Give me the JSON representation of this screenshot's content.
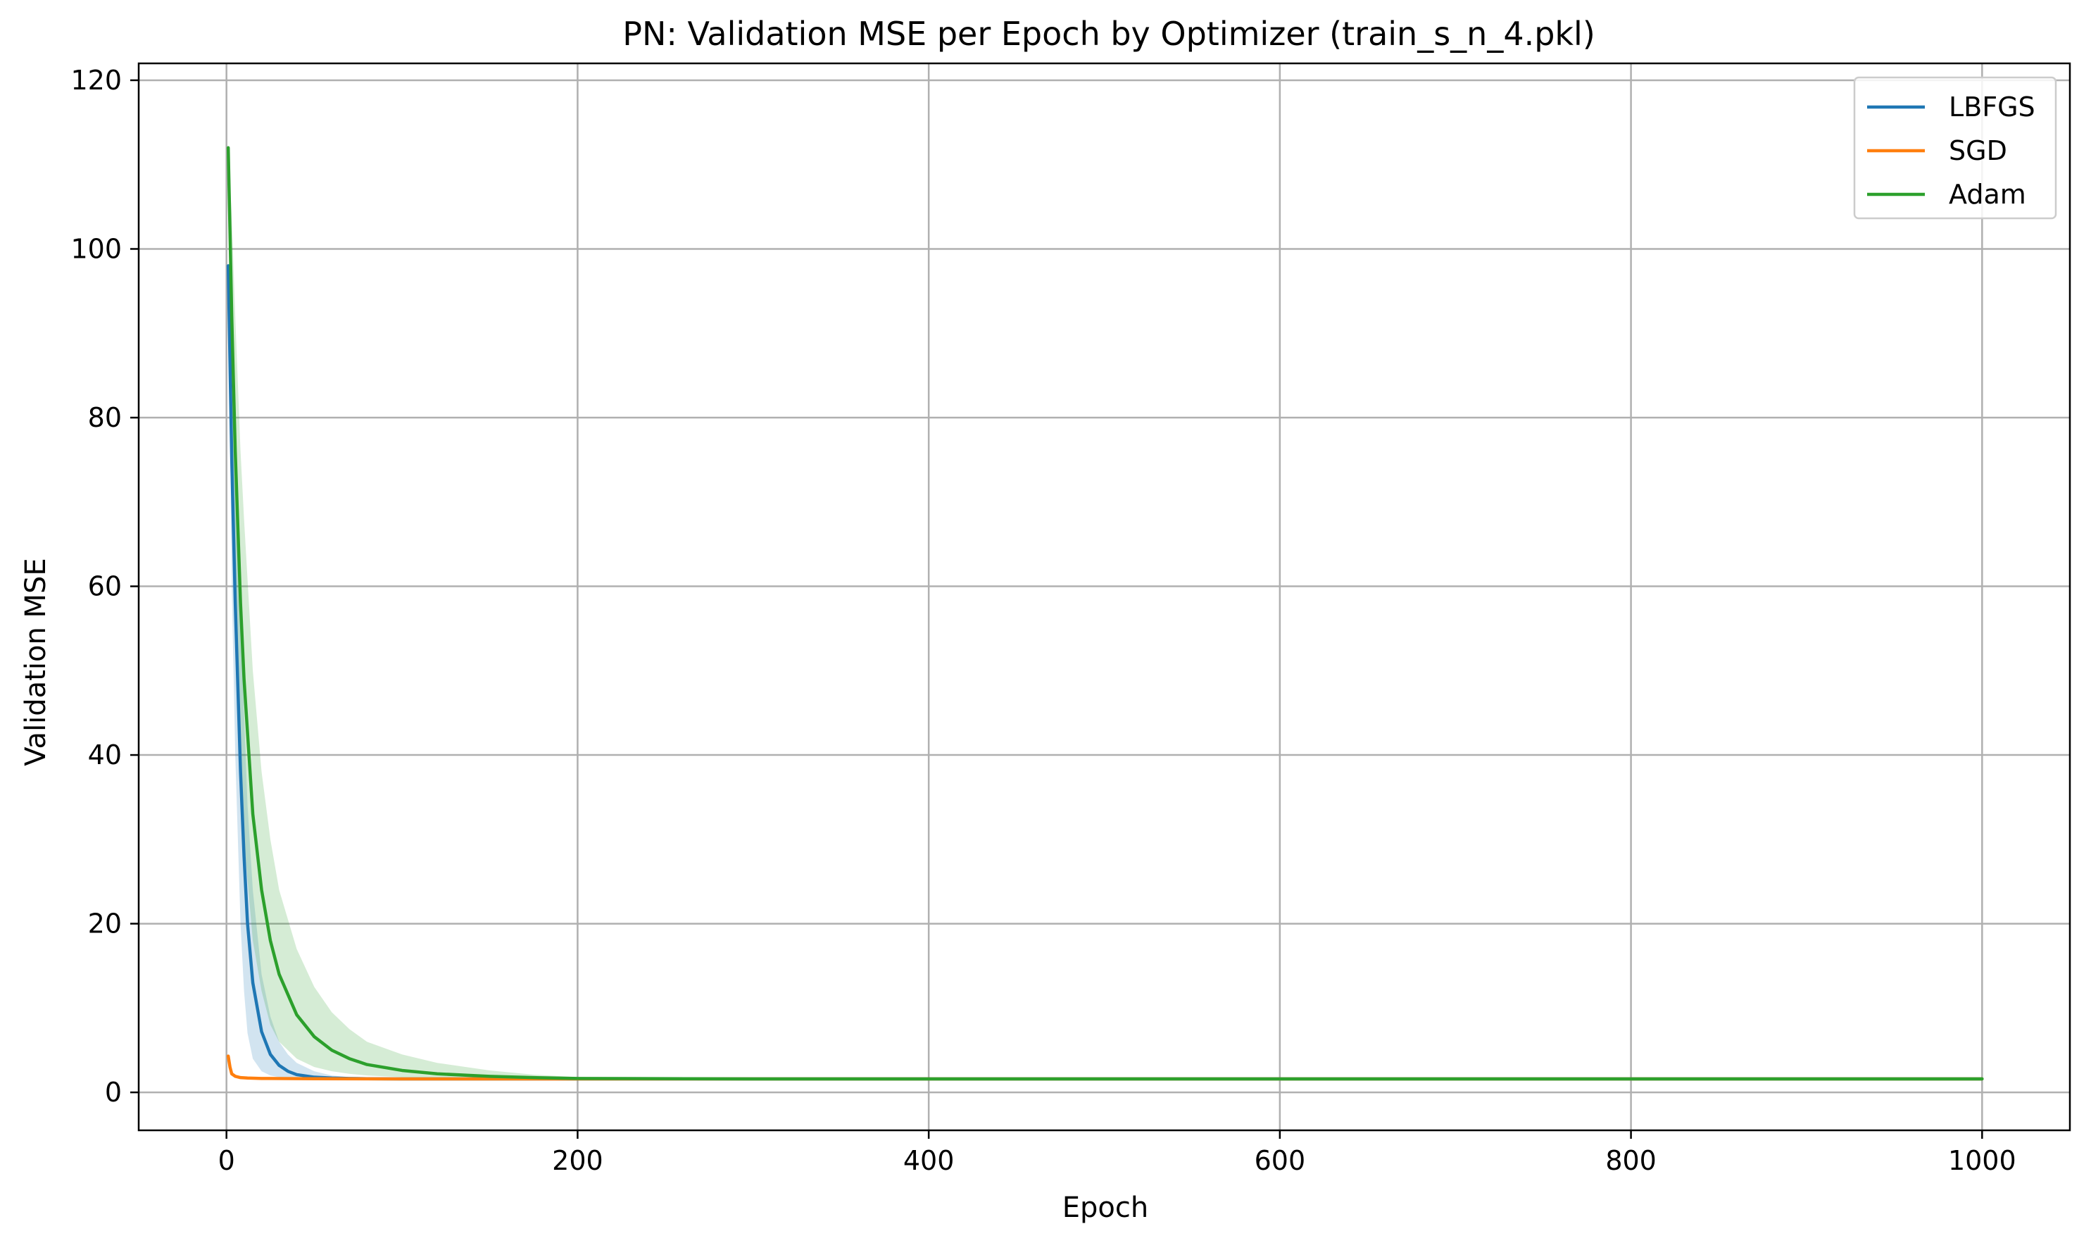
{
  "chart_data": {
    "type": "line",
    "title": "PN: Validation MSE per Epoch by Optimizer (train_s_n_4.pkl)",
    "xlabel": "Epoch",
    "ylabel": "Validation MSE",
    "xlim": [
      -50,
      1050
    ],
    "ylim": [
      -4.5,
      122
    ],
    "xticks": [
      0,
      200,
      400,
      600,
      800,
      1000
    ],
    "yticks": [
      0,
      20,
      40,
      60,
      80,
      100,
      120
    ],
    "xtick_labels": [
      "0",
      "200",
      "400",
      "600",
      "800",
      "1000"
    ],
    "ytick_labels": [
      "0",
      "20",
      "40",
      "60",
      "80",
      "100",
      "120"
    ],
    "grid": true,
    "legend_position": "top-right",
    "series": [
      {
        "name": "LBFGS",
        "color": "#1f77b4",
        "x": [
          1,
          3,
          5,
          8,
          10,
          12,
          15,
          20,
          25,
          30,
          35,
          40,
          50,
          60,
          70,
          80,
          100,
          150,
          200,
          300,
          400,
          500,
          600,
          700,
          800,
          900,
          1000
        ],
        "y": [
          98,
          75,
          58,
          38,
          28,
          20,
          13,
          7.2,
          4.5,
          3.2,
          2.5,
          2.1,
          1.8,
          1.7,
          1.65,
          1.62,
          1.6,
          1.6,
          1.6,
          1.6,
          1.6,
          1.6,
          1.6,
          1.6,
          1.6,
          1.6,
          1.6
        ],
        "band_lower": [
          98,
          60,
          40,
          20,
          12,
          7,
          4,
          2.5,
          2,
          1.8,
          1.7,
          1.65,
          1.6,
          1.6,
          1.6,
          1.6,
          1.6,
          1.6,
          1.6,
          1.6,
          1.6,
          1.6,
          1.6,
          1.6,
          1.6,
          1.6,
          1.6
        ],
        "band_upper": [
          98,
          90,
          78,
          58,
          45,
          34,
          24,
          14,
          9,
          6,
          4.5,
          3.5,
          2.5,
          2,
          1.8,
          1.7,
          1.65,
          1.6,
          1.6,
          1.6,
          1.6,
          1.6,
          1.6,
          1.6,
          1.6,
          1.6,
          1.6
        ]
      },
      {
        "name": "SGD",
        "color": "#ff7f0e",
        "x": [
          1,
          2,
          3,
          5,
          8,
          12,
          20,
          50,
          100,
          200,
          400,
          600,
          800,
          1000
        ],
        "y": [
          4.3,
          3.0,
          2.2,
          1.9,
          1.75,
          1.7,
          1.65,
          1.62,
          1.6,
          1.6,
          1.6,
          1.6,
          1.6,
          1.6
        ],
        "band_lower": [
          4.3,
          2.8,
          2.0,
          1.8,
          1.7,
          1.65,
          1.6,
          1.6,
          1.6,
          1.6,
          1.6,
          1.6,
          1.6,
          1.6
        ],
        "band_upper": [
          4.3,
          3.2,
          2.4,
          2.0,
          1.8,
          1.75,
          1.7,
          1.65,
          1.62,
          1.6,
          1.6,
          1.6,
          1.6,
          1.6
        ]
      },
      {
        "name": "Adam",
        "color": "#2ca02c",
        "x": [
          1,
          3,
          5,
          8,
          10,
          15,
          20,
          25,
          30,
          40,
          50,
          60,
          70,
          80,
          100,
          120,
          150,
          175,
          200,
          300,
          400,
          500,
          600,
          700,
          800,
          900,
          1000
        ],
        "y": [
          112,
          92,
          76,
          58,
          49,
          33,
          24,
          18,
          14,
          9.2,
          6.6,
          5.0,
          4.0,
          3.3,
          2.6,
          2.2,
          1.9,
          1.75,
          1.65,
          1.6,
          1.6,
          1.6,
          1.6,
          1.6,
          1.6,
          1.6,
          1.6
        ],
        "band_lower": [
          112,
          80,
          60,
          40,
          30,
          18,
          12,
          8,
          6,
          4,
          3,
          2.5,
          2.2,
          2,
          1.8,
          1.7,
          1.65,
          1.6,
          1.6,
          1.6,
          1.6,
          1.6,
          1.6,
          1.6,
          1.6,
          1.6,
          1.6
        ],
        "band_upper": [
          112,
          104,
          92,
          76,
          68,
          50,
          38,
          30,
          24,
          17,
          12.5,
          9.5,
          7.5,
          6,
          4.5,
          3.5,
          2.6,
          2.1,
          1.8,
          1.65,
          1.6,
          1.6,
          1.6,
          1.6,
          1.6,
          1.6,
          1.6
        ]
      }
    ]
  }
}
